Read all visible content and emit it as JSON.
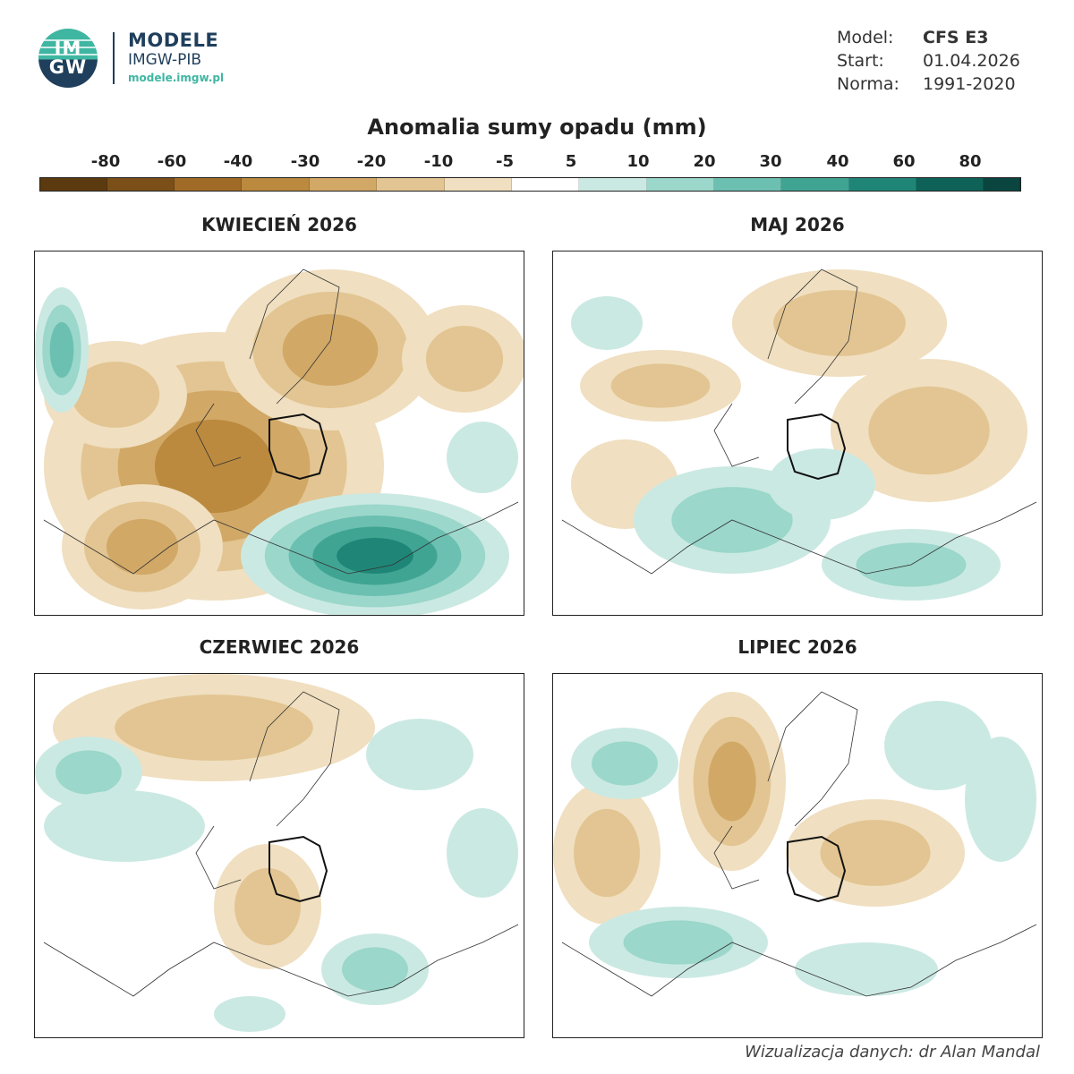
{
  "header": {
    "logo_text_top": "IM",
    "logo_text_bottom": "GW",
    "brand_title": "MODELE",
    "brand_sub": "IMGW-PIB",
    "brand_url": "modele.imgw.pl"
  },
  "meta": {
    "model_label": "Model:",
    "model_value": "CFS E3",
    "start_label": "Start:",
    "start_value": "01.04.2026",
    "norm_label": "Norma:",
    "norm_value": "1991-2020"
  },
  "legend": {
    "title": "Anomalia sumy opadu (mm)",
    "ticks": [
      "-80",
      "-60",
      "-40",
      "-30",
      "-20",
      "-10",
      "-5",
      "5",
      "10",
      "20",
      "30",
      "40",
      "60",
      "80"
    ],
    "colors": [
      "#5c3a10",
      "#7a4f18",
      "#a06b27",
      "#bb8a3e",
      "#d1a866",
      "#e2c592",
      "#f0dfc0",
      "#ffffff",
      "#cbe9e3",
      "#9bd7cb",
      "#6cc0b1",
      "#40a493",
      "#1f8677",
      "#0e6257",
      "#0a4540"
    ]
  },
  "panels": {
    "p1": {
      "title": "KWIECIEŃ 2026"
    },
    "p2": {
      "title": "MAJ 2026"
    },
    "p3": {
      "title": "CZERWIEC 2026"
    },
    "p4": {
      "title": "LIPIEC 2026"
    }
  },
  "credit": "Wizualizacja danych: dr Alan Mandal"
}
